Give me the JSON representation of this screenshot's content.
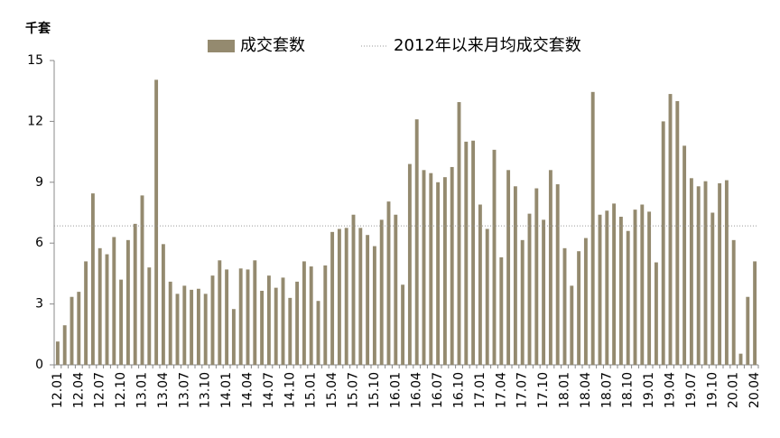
{
  "chart_data": {
    "type": "bar",
    "y_label": "千套",
    "categories": [
      "12.01",
      null,
      null,
      "12.04",
      null,
      null,
      "12.07",
      null,
      null,
      "12.10",
      null,
      null,
      "13.01",
      null,
      null,
      "13.04",
      null,
      null,
      "13.07",
      null,
      null,
      "13.10",
      null,
      null,
      "14.01",
      null,
      null,
      "14.04",
      null,
      null,
      "14.07",
      null,
      null,
      "14.10",
      null,
      null,
      "15.01",
      null,
      null,
      "15.04",
      null,
      null,
      "15.07",
      null,
      null,
      "15.10",
      null,
      null,
      "16.01",
      null,
      null,
      "16.04",
      null,
      null,
      "16.07",
      null,
      null,
      "16.10",
      null,
      null,
      "17.01",
      null,
      null,
      "17.04",
      null,
      null,
      "17.07",
      null,
      null,
      "17.10",
      null,
      null,
      "18.01",
      null,
      null,
      "18.04",
      null,
      null,
      "18.07",
      null,
      null,
      "18.10",
      null,
      null,
      "19.01",
      null,
      null,
      "19.04",
      null,
      null,
      "19.07",
      null,
      null,
      "19.10",
      null,
      null,
      "20.01",
      null,
      null,
      "20.04"
    ],
    "series": [
      {
        "name": "成交套数",
        "color": "#948a6f",
        "values": [
          1.15,
          1.95,
          3.35,
          3.6,
          5.1,
          8.45,
          5.75,
          5.45,
          6.3,
          4.2,
          6.15,
          6.95,
          8.35,
          4.8,
          14.05,
          5.95,
          4.1,
          3.5,
          3.9,
          3.7,
          3.75,
          3.5,
          4.4,
          5.15,
          4.7,
          2.75,
          4.75,
          4.7,
          5.15,
          3.65,
          4.4,
          3.8,
          4.3,
          3.3,
          4.1,
          5.1,
          4.85,
          3.15,
          4.9,
          6.55,
          6.7,
          6.75,
          7.4,
          6.75,
          6.4,
          5.85,
          7.15,
          8.05,
          7.4,
          3.95,
          9.9,
          12.1,
          9.6,
          9.45,
          9.0,
          9.25,
          9.75,
          12.95,
          11.0,
          11.05,
          7.9,
          6.7,
          10.6,
          5.3,
          9.6,
          8.8,
          6.15,
          7.45,
          8.7,
          7.15,
          9.6,
          8.9,
          5.75,
          3.9,
          5.6,
          6.25,
          13.45,
          7.4,
          7.6,
          7.95,
          7.3,
          6.6,
          7.65,
          7.9,
          7.55,
          5.05,
          12.0,
          13.35,
          13.0,
          10.8,
          9.2,
          8.8,
          9.05,
          7.5,
          8.95,
          9.1,
          6.15,
          0.55,
          3.35,
          5.1
        ]
      }
    ],
    "average": {
      "name": "2012年以来月均成交套数",
      "value": 6.85,
      "color": "#999999"
    },
    "ylim": [
      0,
      15
    ],
    "yticks": [
      0,
      3,
      6,
      9,
      12,
      15
    ],
    "grid": false
  }
}
